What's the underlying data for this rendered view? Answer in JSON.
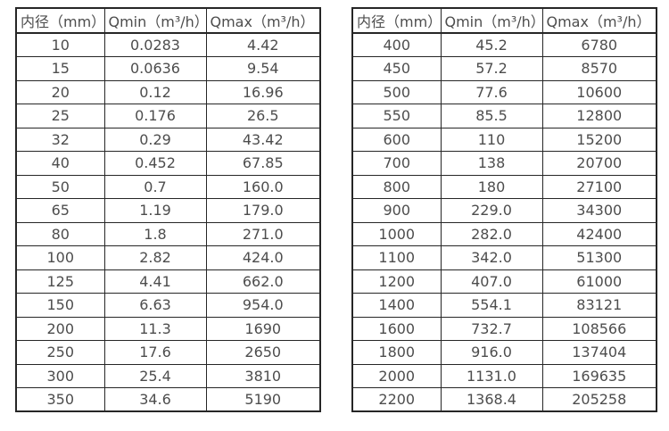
{
  "page": {
    "background_color": "#ffffff",
    "border_color": "#262626",
    "text_color": "#4d4d4d"
  },
  "tables": [
    {
      "name": "small-diameter-flow-table",
      "headers": [
        "内径（mm）",
        "Qmin（m³/h）",
        "Qmax（m³/h）"
      ],
      "rows": [
        [
          "10",
          "0.0283",
          "4.42"
        ],
        [
          "15",
          "0.0636",
          "9.54"
        ],
        [
          "20",
          "0.12",
          "16.96"
        ],
        [
          "25",
          "0.176",
          "26.5"
        ],
        [
          "32",
          "0.29",
          "43.42"
        ],
        [
          "40",
          "0.452",
          "67.85"
        ],
        [
          "50",
          "0.7",
          "160.0"
        ],
        [
          "65",
          "1.19",
          "179.0"
        ],
        [
          "80",
          "1.8",
          "271.0"
        ],
        [
          "100",
          "2.82",
          "424.0"
        ],
        [
          "125",
          "4.41",
          "662.0"
        ],
        [
          "150",
          "6.63",
          "954.0"
        ],
        [
          "200",
          "11.3",
          "1690"
        ],
        [
          "250",
          "17.6",
          "2650"
        ],
        [
          "300",
          "25.4",
          "3810"
        ],
        [
          "350",
          "34.6",
          "5190"
        ]
      ]
    },
    {
      "name": "large-diameter-flow-table",
      "headers": [
        "内径（mm）",
        "Qmin（m³/h）",
        "Qmax（m³/h）"
      ],
      "rows": [
        [
          "400",
          "45.2",
          "6780"
        ],
        [
          "450",
          "57.2",
          "8570"
        ],
        [
          "500",
          "77.6",
          "10600"
        ],
        [
          "550",
          "85.5",
          "12800"
        ],
        [
          "600",
          "110",
          "15200"
        ],
        [
          "700",
          "138",
          "20700"
        ],
        [
          "800",
          "180",
          "27100"
        ],
        [
          "900",
          "229.0",
          "34300"
        ],
        [
          "1000",
          "282.0",
          "42400"
        ],
        [
          "1100",
          "342.0",
          "51300"
        ],
        [
          "1200",
          "407.0",
          "61000"
        ],
        [
          "1400",
          "554.1",
          "83121"
        ],
        [
          "1600",
          "732.7",
          "108566"
        ],
        [
          "1800",
          "916.0",
          "137404"
        ],
        [
          "2000",
          "1131.0",
          "169635"
        ],
        [
          "2200",
          "1368.4",
          "205258"
        ]
      ]
    }
  ]
}
